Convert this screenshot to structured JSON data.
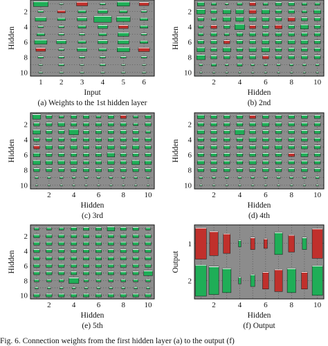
{
  "figure": {
    "caption": "Fig. 6.    Connection weights from the first hidden layer (a) to the output (f)",
    "colors": {
      "background": "#8c8c8c",
      "positive": "#1fae57",
      "negative": "#c0302c",
      "frame": "#111111"
    }
  },
  "chart_data": [
    {
      "type": "hinton",
      "panel_caption": "(a) Weights to the 1st hidden layer",
      "xlabel": "Input",
      "ylabel": "Hidden",
      "x_ticks": [
        "1",
        "2",
        "3",
        "4",
        "5",
        "6"
      ],
      "y_ticks": [
        "2",
        "4",
        "6",
        "8",
        "10"
      ],
      "n_cols": 6,
      "n_rows": 10,
      "weights": [
        [
          0.7,
          0.05,
          -0.4,
          0.1,
          0.5,
          -0.3
        ],
        [
          0.1,
          -0.2,
          0.2,
          0.3,
          0.2,
          0.1
        ],
        [
          0.4,
          0.2,
          0.3,
          1.0,
          0.6,
          0.2
        ],
        [
          0.1,
          0.1,
          0.2,
          0.3,
          -0.3,
          0.2
        ],
        [
          0.2,
          0.1,
          0.1,
          0.2,
          0.4,
          0.1
        ],
        [
          0.5,
          0.3,
          0.2,
          0.3,
          0.4,
          0.2
        ],
        [
          -0.3,
          0.1,
          0.3,
          0.2,
          0.5,
          -0.4
        ],
        [
          0.1,
          0.1,
          0.1,
          0.1,
          0.1,
          0.1
        ],
        [
          0.05,
          0.1,
          0.05,
          0.1,
          0.05,
          0.05
        ],
        [
          0.05,
          0.05,
          0.05,
          0.05,
          0.05,
          0.05
        ]
      ]
    },
    {
      "type": "hinton",
      "panel_caption": "(b) 2nd",
      "xlabel": "Hidden",
      "ylabel": "Hidden",
      "x_ticks": [
        "2",
        "4",
        "6",
        "8",
        "10"
      ],
      "y_ticks": [
        "2",
        "4",
        "6",
        "8",
        "10"
      ],
      "n_cols": 10,
      "n_rows": 10,
      "weights": [
        [
          0.4,
          0.2,
          0.1,
          0.2,
          -0.3,
          0.2,
          0.3,
          0.3,
          0.2,
          0.2
        ],
        [
          0.6,
          0.3,
          0.5,
          0.5,
          -0.4,
          0.5,
          0.3,
          0.3,
          0.2,
          0.4
        ],
        [
          0.3,
          0.2,
          0.5,
          0.5,
          0.4,
          0.4,
          0.3,
          -0.4,
          0.3,
          0.3
        ],
        [
          0.2,
          -0.3,
          0.3,
          0.8,
          -0.3,
          0.3,
          -0.4,
          0.3,
          0.5,
          0.3
        ],
        [
          0.2,
          0.3,
          0.2,
          0.3,
          0.3,
          0.3,
          0.3,
          0.3,
          0.3,
          0.3
        ],
        [
          0.3,
          0.3,
          -0.3,
          0.3,
          0.3,
          0.4,
          0.3,
          0.4,
          0.4,
          0.3
        ],
        [
          0.5,
          0.3,
          0.5,
          0.3,
          0.4,
          0.5,
          0.3,
          0.3,
          0.3,
          0.3
        ],
        [
          0.6,
          0.3,
          0.3,
          0.3,
          0.3,
          -0.3,
          0.3,
          0.3,
          0.3,
          0.3
        ],
        [
          0.1,
          0.2,
          0.1,
          0.2,
          0.1,
          0.1,
          0.1,
          0.1,
          0.1,
          0.1
        ],
        [
          0.05,
          0.05,
          0.05,
          0.05,
          0.05,
          0.05,
          0.05,
          0.05,
          0.05,
          0.05
        ]
      ]
    },
    {
      "type": "hinton",
      "panel_caption": "(c) 3rd",
      "xlabel": "Hidden",
      "ylabel": "Hidden",
      "x_ticks": [
        "2",
        "4",
        "6",
        "8",
        "10"
      ],
      "y_ticks": [
        "2",
        "4",
        "6",
        "8",
        "10"
      ],
      "n_cols": 10,
      "n_rows": 10,
      "weights": [
        [
          0.6,
          0.3,
          0.2,
          0.3,
          0.3,
          0.2,
          0.3,
          -0.3,
          0.2,
          0.3
        ],
        [
          0.3,
          0.3,
          0.4,
          0.3,
          0.3,
          0.3,
          0.3,
          0.3,
          0.2,
          0.3
        ],
        [
          0.5,
          0.3,
          0.3,
          0.8,
          0.3,
          0.3,
          0.3,
          0.3,
          0.3,
          0.2
        ],
        [
          0.3,
          0.3,
          0.3,
          0.3,
          0.3,
          0.3,
          0.3,
          0.3,
          0.3,
          0.3
        ],
        [
          -0.3,
          0.4,
          0.3,
          0.4,
          0.3,
          0.3,
          0.4,
          0.3,
          0.4,
          0.3
        ],
        [
          0.4,
          0.3,
          0.3,
          0.3,
          0.3,
          0.3,
          0.5,
          0.3,
          0.3,
          0.3
        ],
        [
          0.5,
          0.4,
          0.4,
          0.4,
          0.3,
          0.3,
          0.4,
          0.3,
          0.5,
          0.4
        ],
        [
          0.3,
          0.3,
          0.3,
          0.3,
          0.3,
          0.3,
          0.3,
          0.3,
          0.3,
          0.3
        ],
        [
          0.1,
          0.1,
          0.1,
          0.1,
          0.1,
          0.1,
          0.1,
          0.1,
          0.1,
          0.1
        ],
        [
          0.05,
          0.05,
          0.05,
          0.05,
          0.05,
          0.05,
          0.05,
          0.05,
          0.05,
          0.05
        ]
      ]
    },
    {
      "type": "hinton",
      "panel_caption": "(d) 4th",
      "xlabel": "Hidden",
      "ylabel": "Hidden",
      "x_ticks": [
        "2",
        "4",
        "6",
        "8",
        "10"
      ],
      "y_ticks": [
        "2",
        "4",
        "6",
        "8",
        "10"
      ],
      "n_cols": 10,
      "n_rows": 10,
      "weights": [
        [
          0.4,
          0.3,
          0.3,
          0.3,
          -0.3,
          0.3,
          0.3,
          0.3,
          0.3,
          0.3
        ],
        [
          0.3,
          0.3,
          0.3,
          0.3,
          0.3,
          0.4,
          0.3,
          0.3,
          0.3,
          0.3
        ],
        [
          0.4,
          0.3,
          0.3,
          0.7,
          0.3,
          0.3,
          0.3,
          0.3,
          0.3,
          0.3
        ],
        [
          0.3,
          0.3,
          0.3,
          0.3,
          0.4,
          0.3,
          0.3,
          0.3,
          0.3,
          0.3
        ],
        [
          0.3,
          0.3,
          0.3,
          0.3,
          0.3,
          0.3,
          0.4,
          0.3,
          0.3,
          0.3
        ],
        [
          0.3,
          0.3,
          0.3,
          0.3,
          0.3,
          0.3,
          0.3,
          -0.3,
          0.4,
          0.3
        ],
        [
          0.4,
          0.3,
          0.3,
          0.3,
          0.4,
          0.3,
          0.3,
          0.3,
          0.3,
          0.3
        ],
        [
          0.3,
          0.3,
          0.3,
          0.3,
          0.3,
          0.3,
          0.3,
          0.3,
          0.3,
          0.3
        ],
        [
          0.1,
          0.1,
          0.1,
          0.1,
          0.1,
          0.1,
          0.1,
          0.1,
          0.1,
          0.1
        ],
        [
          0.05,
          0.05,
          0.05,
          0.05,
          0.05,
          0.05,
          0.05,
          0.05,
          0.05,
          0.05
        ]
      ]
    },
    {
      "type": "hinton",
      "panel_caption": "(e) 5th",
      "xlabel": "Hidden",
      "ylabel": "Hidden",
      "x_ticks": [
        "2",
        "4",
        "6",
        "8",
        "10"
      ],
      "y_ticks": [
        "2",
        "4",
        "6",
        "8",
        "10"
      ],
      "n_cols": 10,
      "n_rows": 10,
      "weights": [
        [
          0.2,
          0.2,
          0.2,
          0.3,
          0.3,
          0.3,
          0.5,
          0.3,
          0.3,
          0.2
        ],
        [
          0.3,
          0.3,
          0.3,
          0.3,
          0.3,
          0.3,
          0.3,
          0.3,
          0.3,
          0.3
        ],
        [
          0.3,
          0.3,
          0.3,
          0.3,
          0.3,
          0.3,
          0.3,
          0.3,
          0.3,
          0.3
        ],
        [
          0.3,
          0.3,
          0.3,
          0.3,
          0.3,
          0.3,
          0.3,
          0.3,
          0.3,
          0.3
        ],
        [
          0.3,
          0.3,
          0.3,
          0.3,
          0.3,
          0.3,
          0.3,
          0.3,
          0.3,
          0.3
        ],
        [
          0.3,
          0.3,
          0.3,
          0.3,
          0.3,
          0.3,
          0.3,
          0.3,
          0.3,
          0.3
        ],
        [
          0.3,
          0.3,
          0.3,
          0.3,
          0.3,
          0.3,
          0.3,
          0.3,
          0.3,
          0.7
        ],
        [
          0.2,
          0.2,
          0.2,
          0.9,
          0.2,
          0.2,
          0.2,
          0.2,
          0.2,
          0.2
        ],
        [
          0.1,
          0.1,
          0.1,
          0.1,
          0.1,
          0.1,
          0.1,
          0.1,
          0.1,
          0.1
        ],
        [
          0.3,
          0.3,
          0.3,
          0.3,
          0.3,
          0.3,
          0.3,
          0.3,
          0.3,
          0.3
        ]
      ]
    },
    {
      "type": "hinton",
      "panel_caption": "(f) Output",
      "xlabel": "Hidden",
      "ylabel": "Output",
      "x_ticks": [
        "2",
        "4",
        "6",
        "8",
        "10"
      ],
      "y_ticks": [
        "1",
        "2"
      ],
      "n_cols": 10,
      "n_rows": 2,
      "weights": [
        [
          -1.0,
          -0.6,
          -0.4,
          0.05,
          -0.15,
          -0.1,
          0.5,
          -0.3,
          0.15,
          -0.9
        ],
        [
          1.0,
          0.8,
          0.6,
          0.05,
          0.15,
          -0.3,
          -0.5,
          0.6,
          -0.3,
          0.9
        ]
      ]
    }
  ]
}
